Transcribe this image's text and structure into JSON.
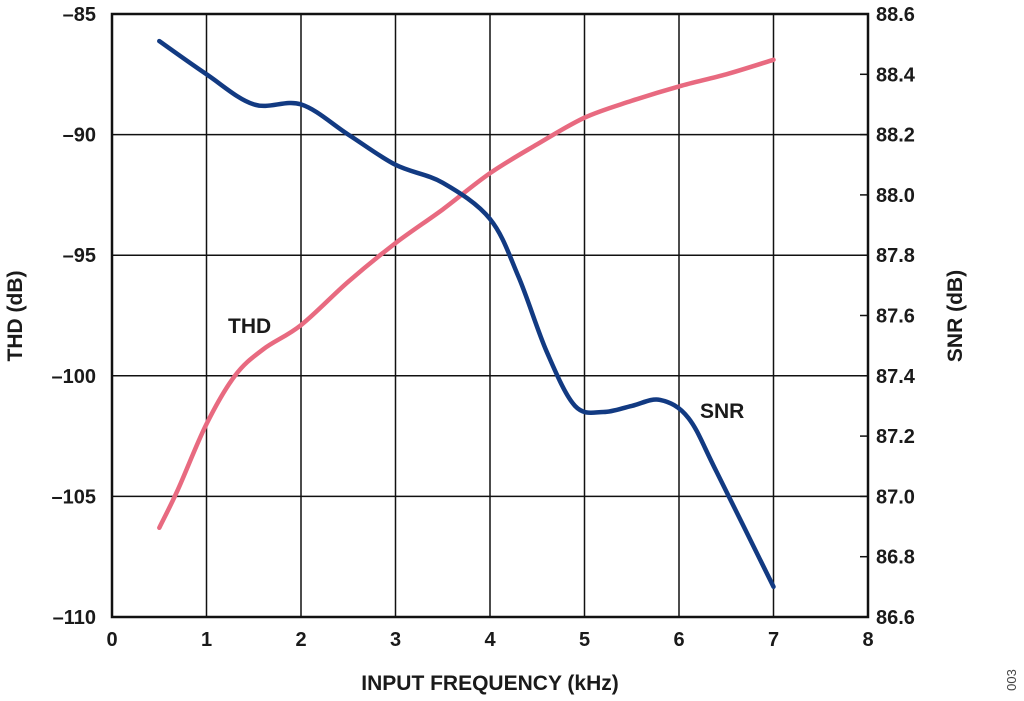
{
  "chart_data": {
    "type": "line",
    "xlabel": "INPUT FREQUENCY (kHz)",
    "ylabel_left": "THD (dB)",
    "ylabel_right": "SNR (dB)",
    "xlim": [
      0,
      8
    ],
    "ylim_left": [
      -110,
      -85
    ],
    "ylim_right": [
      86.6,
      88.6
    ],
    "x_ticks": [
      "0",
      "1",
      "2",
      "3",
      "4",
      "5",
      "6",
      "7",
      "8"
    ],
    "y_left_ticks": [
      "–85",
      "–90",
      "–95",
      "–100",
      "–105",
      "–110"
    ],
    "y_right_ticks": [
      "88.6",
      "88.4",
      "88.2",
      "88.0",
      "87.8",
      "87.6",
      "87.4",
      "87.2",
      "87.0",
      "86.8",
      "86.6"
    ],
    "grid": true,
    "series": [
      {
        "name": "THD",
        "axis": "left",
        "color": "#e86a80",
        "x": [
          0.5,
          0.7,
          1.0,
          1.3,
          1.6,
          2.0,
          2.5,
          3.0,
          3.5,
          4.0,
          4.5,
          5.0,
          5.5,
          6.0,
          6.5,
          7.0
        ],
        "y": [
          -106.3,
          -104.7,
          -102.0,
          -100.0,
          -98.9,
          -97.9,
          -96.1,
          -94.5,
          -93.1,
          -91.6,
          -90.4,
          -89.3,
          -88.6,
          -88.0,
          -87.5,
          -86.9
        ]
      },
      {
        "name": "SNR",
        "axis": "right",
        "color": "#123a82",
        "x": [
          0.5,
          1.0,
          1.5,
          2.0,
          2.5,
          3.0,
          3.5,
          4.0,
          4.3,
          4.6,
          4.9,
          5.2,
          5.5,
          5.8,
          6.1,
          6.4,
          7.0
        ],
        "y": [
          88.51,
          88.4,
          88.3,
          88.3,
          88.2,
          88.1,
          88.04,
          87.92,
          87.73,
          87.48,
          87.3,
          87.28,
          87.3,
          87.32,
          87.26,
          87.08,
          86.7
        ]
      }
    ],
    "annotations": [
      "THD",
      "SNR"
    ]
  },
  "figure_id": "003"
}
